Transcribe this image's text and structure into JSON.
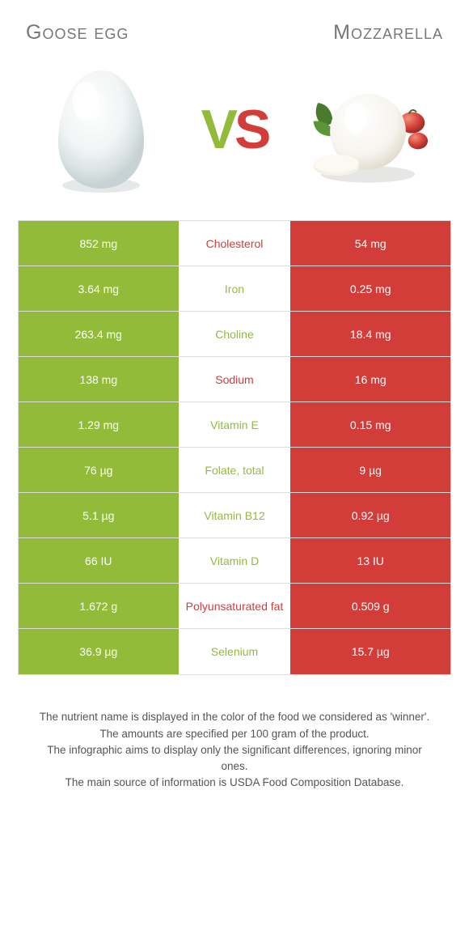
{
  "titles": {
    "left": "Goose egg",
    "right": "Mozzarella"
  },
  "vs": {
    "v": "V",
    "s": "S"
  },
  "colors": {
    "left_bg": "#93bb3a",
    "right_bg": "#d23d3a",
    "left_text": "#93bb3a",
    "right_text": "#d23d3a"
  },
  "rows": [
    {
      "left": "852 mg",
      "name": "Cholesterol",
      "right": "54 mg",
      "winner": "right"
    },
    {
      "left": "3.64 mg",
      "name": "Iron",
      "right": "0.25 mg",
      "winner": "left"
    },
    {
      "left": "263.4 mg",
      "name": "Choline",
      "right": "18.4 mg",
      "winner": "left"
    },
    {
      "left": "138 mg",
      "name": "Sodium",
      "right": "16 mg",
      "winner": "right"
    },
    {
      "left": "1.29 mg",
      "name": "Vitamin E",
      "right": "0.15 mg",
      "winner": "left"
    },
    {
      "left": "76 µg",
      "name": "Folate, total",
      "right": "9 µg",
      "winner": "left"
    },
    {
      "left": "5.1 µg",
      "name": "Vitamin B12",
      "right": "0.92 µg",
      "winner": "left"
    },
    {
      "left": "66 IU",
      "name": "Vitamin D",
      "right": "13 IU",
      "winner": "left"
    },
    {
      "left": "1.672 g",
      "name": "Polyunsaturated fat",
      "right": "0.509 g",
      "winner": "right"
    },
    {
      "left": "36.9 µg",
      "name": "Selenium",
      "right": "15.7 µg",
      "winner": "left"
    }
  ],
  "footer": [
    "The nutrient name is displayed in the color of the food we considered as 'winner'.",
    "The amounts are specified per 100 gram of the product.",
    "The infographic aims to display only the significant differences, ignoring minor ones.",
    "The main source of information is USDA Food Composition Database."
  ]
}
